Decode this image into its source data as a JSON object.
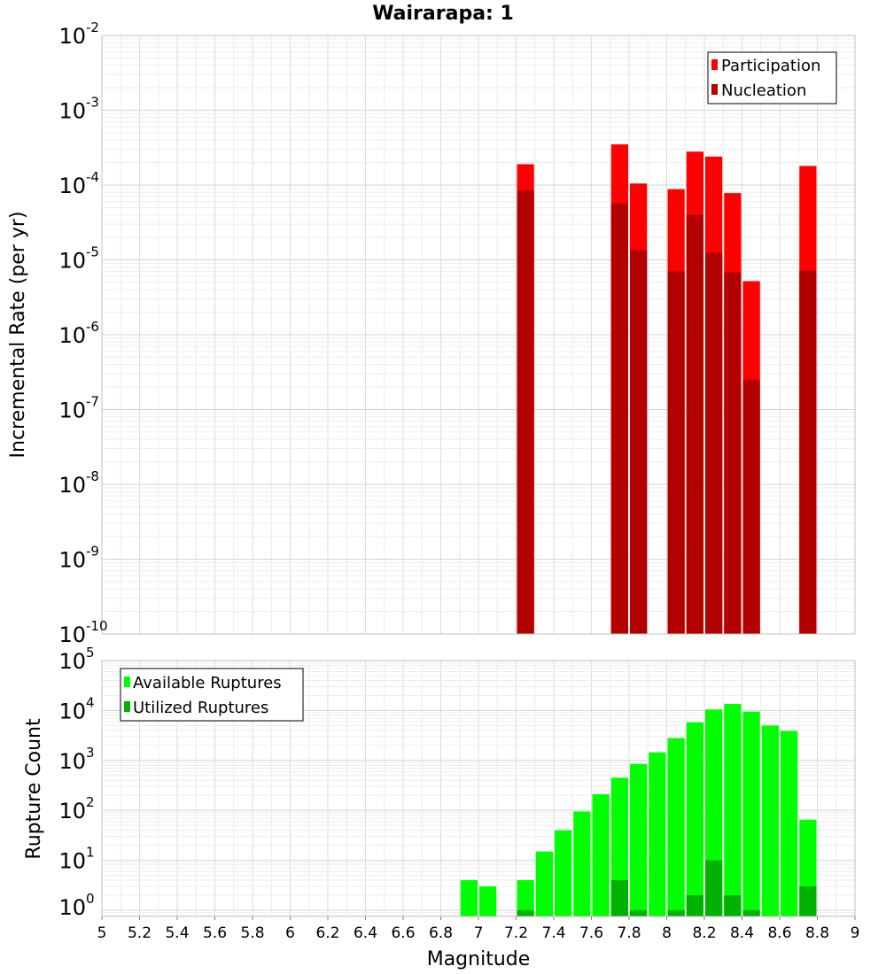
{
  "title": "Wairarapa: 1",
  "colors": {
    "participation": "#ff0000",
    "nucleation": "#b20000",
    "available": "#00ff00",
    "utilized": "#00b200"
  },
  "chart_data": [
    {
      "type": "bar",
      "ylabel": "Incremental Rate (per yr)",
      "xlim": [
        5,
        9
      ],
      "ylim": [
        1e-10,
        0.01
      ],
      "yscale": "log",
      "grid": true,
      "legend_position": "top-right",
      "bin_width": 0.1,
      "series": [
        {
          "name": "Participation",
          "color": "#ff0000",
          "points": [
            {
              "x": 7.25,
              "y": 0.00019
            },
            {
              "x": 7.75,
              "y": 0.00035
            },
            {
              "x": 7.85,
              "y": 0.000105
            },
            {
              "x": 8.05,
              "y": 8.8e-05
            },
            {
              "x": 8.15,
              "y": 0.00028
            },
            {
              "x": 8.25,
              "y": 0.00024
            },
            {
              "x": 8.35,
              "y": 7.8e-05
            },
            {
              "x": 8.45,
              "y": 5.2e-06
            },
            {
              "x": 8.75,
              "y": 0.00018
            }
          ]
        },
        {
          "name": "Nucleation",
          "color": "#b20000",
          "points": [
            {
              "x": 7.25,
              "y": 8.5e-05
            },
            {
              "x": 7.75,
              "y": 5.7e-05
            },
            {
              "x": 7.85,
              "y": 1.35e-05
            },
            {
              "x": 8.05,
              "y": 7e-06
            },
            {
              "x": 8.15,
              "y": 4e-05
            },
            {
              "x": 8.25,
              "y": 1.25e-05
            },
            {
              "x": 8.35,
              "y": 6.8e-06
            },
            {
              "x": 8.45,
              "y": 2.5e-07
            },
            {
              "x": 8.75,
              "y": 7.2e-06
            }
          ]
        }
      ]
    },
    {
      "type": "bar",
      "xlabel": "Magnitude",
      "ylabel": "Rupture Count",
      "xlim": [
        5,
        9
      ],
      "ylim": [
        0.75,
        100000
      ],
      "yscale": "log",
      "grid": true,
      "legend_position": "top-left",
      "bin_width": 0.1,
      "series": [
        {
          "name": "Available Ruptures",
          "color": "#00ff00",
          "points": [
            {
              "x": 6.95,
              "y": 4
            },
            {
              "x": 7.05,
              "y": 3
            },
            {
              "x": 7.25,
              "y": 4
            },
            {
              "x": 7.35,
              "y": 15
            },
            {
              "x": 7.45,
              "y": 40
            },
            {
              "x": 7.55,
              "y": 95
            },
            {
              "x": 7.65,
              "y": 210
            },
            {
              "x": 7.75,
              "y": 450
            },
            {
              "x": 7.85,
              "y": 850
            },
            {
              "x": 7.95,
              "y": 1450
            },
            {
              "x": 8.05,
              "y": 2800
            },
            {
              "x": 8.15,
              "y": 5800
            },
            {
              "x": 8.25,
              "y": 10500
            },
            {
              "x": 8.35,
              "y": 13500
            },
            {
              "x": 8.45,
              "y": 9500
            },
            {
              "x": 8.55,
              "y": 5000
            },
            {
              "x": 8.65,
              "y": 3900
            },
            {
              "x": 8.75,
              "y": 65
            }
          ]
        },
        {
          "name": "Utilized Ruptures",
          "color": "#00b200",
          "points": [
            {
              "x": 7.25,
              "y": 1
            },
            {
              "x": 7.75,
              "y": 4
            },
            {
              "x": 7.85,
              "y": 1
            },
            {
              "x": 8.05,
              "y": 1
            },
            {
              "x": 8.15,
              "y": 2
            },
            {
              "x": 8.25,
              "y": 10
            },
            {
              "x": 8.35,
              "y": 2
            },
            {
              "x": 8.45,
              "y": 1
            },
            {
              "x": 8.75,
              "y": 3
            }
          ]
        }
      ]
    }
  ],
  "x_ticks": [
    "5",
    "5.2",
    "5.4",
    "5.6",
    "5.8",
    "6",
    "6.2",
    "6.4",
    "6.6",
    "6.8",
    "7",
    "7.2",
    "7.4",
    "7.6",
    "7.8",
    "8",
    "8.2",
    "8.4",
    "8.6",
    "8.8",
    "9"
  ],
  "top_y_ticks": [
    {
      "base": "10",
      "exp": "-2"
    },
    {
      "base": "10",
      "exp": "-3"
    },
    {
      "base": "10",
      "exp": "-4"
    },
    {
      "base": "10",
      "exp": "-5"
    },
    {
      "base": "10",
      "exp": "-6"
    },
    {
      "base": "10",
      "exp": "-7"
    },
    {
      "base": "10",
      "exp": "-8"
    },
    {
      "base": "10",
      "exp": "-9"
    },
    {
      "base": "10",
      "exp": "-10"
    }
  ],
  "bottom_y_ticks": [
    {
      "base": "10",
      "exp": "5"
    },
    {
      "base": "10",
      "exp": "4"
    },
    {
      "base": "10",
      "exp": "3"
    },
    {
      "base": "10",
      "exp": "2"
    },
    {
      "base": "10",
      "exp": "1"
    },
    {
      "base": "10",
      "exp": "0"
    }
  ]
}
